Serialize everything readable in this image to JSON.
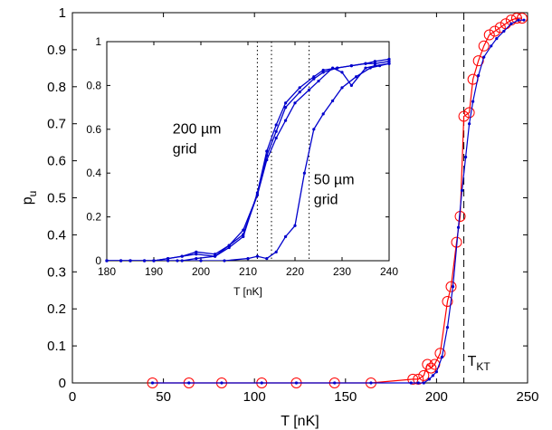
{
  "chart_data": [
    {
      "type": "line",
      "xlabel": "T [nK]",
      "ylabel": "p",
      "ylabel_sub": "u",
      "xlim": [
        0,
        250
      ],
      "ylim": [
        0,
        1
      ],
      "xticks": [
        0,
        50,
        100,
        150,
        200,
        250
      ],
      "yticks": [
        0,
        0.1,
        0.2,
        0.3,
        0.4,
        0.5,
        0.6,
        0.7,
        0.8,
        0.9,
        1
      ],
      "grid": false,
      "annotation": {
        "text": "T",
        "sub": "KT",
        "x": 215
      },
      "vline": {
        "x": 215,
        "style": "dashed"
      },
      "series": [
        {
          "color": "#ff0000",
          "marker": "open-circle",
          "x": [
            44,
            64,
            82,
            104,
            123,
            144,
            164,
            187,
            190,
            193,
            195,
            197,
            199,
            202,
            206,
            208,
            211,
            213,
            215,
            218,
            220,
            223,
            226,
            229,
            232,
            235,
            238,
            241,
            244,
            247
          ],
          "y": [
            0,
            0,
            0,
            0,
            0,
            0,
            0,
            0.01,
            0.01,
            0.02,
            0.05,
            0.04,
            0.05,
            0.08,
            0.22,
            0.26,
            0.38,
            0.45,
            0.72,
            0.73,
            0.82,
            0.87,
            0.91,
            0.94,
            0.95,
            0.96,
            0.97,
            0.98,
            0.985,
            0.985
          ]
        },
        {
          "color": "#0000cc",
          "marker": "dot",
          "x": [
            44,
            64,
            82,
            104,
            123,
            144,
            164,
            186,
            190,
            193,
            196,
            198,
            200,
            203,
            206,
            209,
            212,
            214,
            216,
            218,
            220,
            223,
            226,
            230,
            233,
            237,
            241,
            245,
            248
          ],
          "y": [
            0,
            0,
            0,
            0,
            0,
            0,
            0,
            0,
            0,
            0,
            0.01,
            0.02,
            0.03,
            0.07,
            0.15,
            0.26,
            0.42,
            0.52,
            0.61,
            0.7,
            0.76,
            0.83,
            0.88,
            0.91,
            0.93,
            0.95,
            0.97,
            0.98,
            0.98
          ]
        }
      ]
    },
    {
      "type": "line",
      "xlabel": "T [nK]",
      "xlim": [
        180,
        240
      ],
      "ylim": [
        0,
        1
      ],
      "xticks": [
        180,
        190,
        200,
        210,
        220,
        230,
        240
      ],
      "yticks": [
        0,
        0.2,
        0.4,
        0.6,
        0.8,
        1
      ],
      "grid": false,
      "vlines_dotted": [
        212,
        215,
        223
      ],
      "annotations": [
        {
          "line1": "200 µm",
          "line2": "grid",
          "x": 194,
          "y": 0.58
        },
        {
          "line1": "50 µm",
          "line2": "grid",
          "x": 224,
          "y": 0.35
        }
      ],
      "series": [
        {
          "color": "#0000cc",
          "marker": "dot",
          "x": [
            180,
            183,
            185,
            188,
            190,
            193,
            196,
            199,
            203,
            206,
            209,
            212,
            214,
            216,
            218,
            221,
            224,
            226,
            229,
            232,
            235,
            237,
            240
          ],
          "y": [
            0,
            0,
            0,
            0,
            0,
            0.01,
            0.02,
            0.04,
            0.03,
            0.07,
            0.12,
            0.3,
            0.48,
            0.59,
            0.7,
            0.77,
            0.83,
            0.86,
            0.88,
            0.89,
            0.9,
            0.91,
            0.92
          ]
        },
        {
          "color": "#0000cc",
          "marker": "dot",
          "x": [
            180,
            183,
            185,
            188,
            190,
            193,
            196,
            199,
            203,
            206,
            209,
            212,
            214,
            216,
            218,
            221,
            224,
            226,
            229,
            232,
            235,
            237,
            240
          ],
          "y": [
            0,
            0,
            0,
            0,
            0,
            0.01,
            0.02,
            0.03,
            0.02,
            0.06,
            0.11,
            0.31,
            0.5,
            0.62,
            0.72,
            0.79,
            0.84,
            0.87,
            0.88,
            0.89,
            0.9,
            0.9,
            0.91
          ]
        },
        {
          "color": "#0000cc",
          "marker": "dot",
          "x": [
            180,
            183,
            185,
            188,
            190,
            193,
            196,
            199,
            203,
            206,
            209,
            212,
            214,
            216,
            218,
            220,
            223,
            225,
            228,
            230,
            232,
            235,
            237,
            240
          ],
          "y": [
            0,
            0,
            0,
            0,
            0,
            0,
            0,
            0.01,
            0.02,
            0.07,
            0.14,
            0.3,
            0.46,
            0.56,
            0.64,
            0.72,
            0.78,
            0.82,
            0.88,
            0.86,
            0.8,
            0.88,
            0.89,
            0.9
          ]
        },
        {
          "color": "#0000cc",
          "marker": "dot",
          "x": [
            180,
            185,
            190,
            195,
            200,
            205,
            210,
            212,
            214,
            216,
            218,
            220,
            222,
            224,
            226,
            228,
            230,
            233,
            236,
            238,
            240
          ],
          "y": [
            0,
            0,
            0,
            0,
            0,
            0,
            0.01,
            0.02,
            0.01,
            0.04,
            0.11,
            0.16,
            0.4,
            0.6,
            0.67,
            0.73,
            0.79,
            0.84,
            0.88,
            0.89,
            0.9
          ]
        }
      ]
    }
  ]
}
